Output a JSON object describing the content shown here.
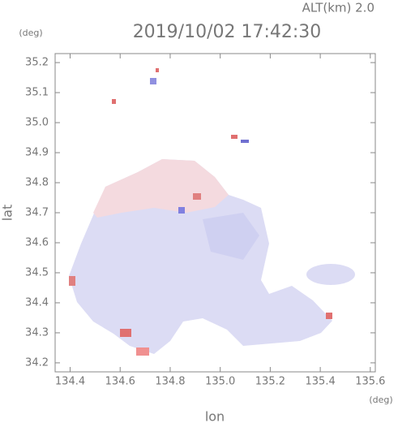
{
  "chart_data": {
    "type": "map",
    "title": "2019/10/02 17:42:30",
    "header": "ALT(km)  2.0",
    "xlabel": "lon",
    "ylabel": "lat",
    "x_unit": "(deg)",
    "y_unit": "(deg)",
    "xlim": [
      134.34,
      135.62
    ],
    "ylim": [
      34.17,
      35.23
    ],
    "xticks": [
      134.4,
      134.6,
      134.8,
      {
        "value": 135.0,
        "label": "135.0"
      },
      135.2,
      135.4,
      135.6
    ],
    "yticks": [
      34.2,
      34.3,
      34.4,
      34.5,
      34.6,
      34.7,
      34.8,
      34.9,
      {
        "value": 35.0,
        "label": "35.0"
      },
      35.1,
      35.2
    ]
  }
}
